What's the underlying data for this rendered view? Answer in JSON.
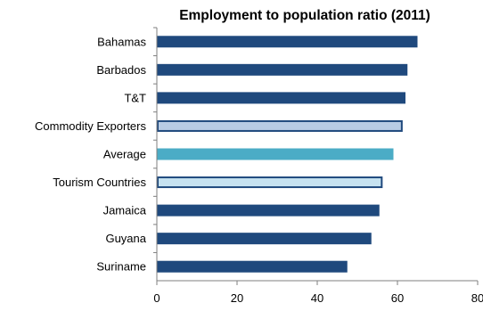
{
  "chart_data": {
    "type": "bar",
    "orientation": "horizontal",
    "title": "Employment to population ratio (2011)",
    "categories": [
      "Bahamas",
      "Barbados",
      "T&T",
      "Commodity Exporters",
      "Average",
      "Tourism Countries",
      "Jamaica",
      "Guyana",
      "Suriname"
    ],
    "values": [
      65,
      62.5,
      62,
      61.3,
      59,
      56.3,
      55.5,
      53.5,
      47.5
    ],
    "xlim": [
      0,
      80
    ],
    "xticks": [
      "0",
      "20",
      "40",
      "60",
      "80"
    ],
    "grid": false,
    "legend": "none",
    "bar_styles": [
      "dark",
      "dark",
      "dark",
      "outlined-light",
      "accent",
      "outlined-lighter",
      "dark",
      "dark",
      "dark"
    ]
  },
  "colors": {
    "dark": "#1F497D",
    "accent": "#4BACC6",
    "outlined-light": "#B8CCE4",
    "outlined-lighter": "#C6E2F0",
    "outline": "#1F497D",
    "axis": "#7f7f7f"
  }
}
